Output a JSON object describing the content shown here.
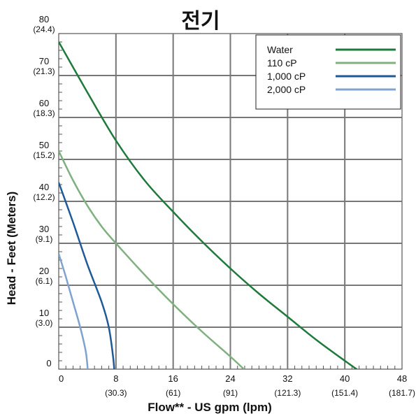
{
  "chart_data": {
    "type": "line",
    "title": "전기",
    "xlabel": "Flow** - US gpm (lpm)",
    "ylabel": "Head - Feet (Meters)",
    "xlim": [
      0,
      48
    ],
    "ylim": [
      0,
      80
    ],
    "grid": true,
    "legend_position": "top-right",
    "x_ticks": [
      {
        "value": 0,
        "label": "0",
        "sub": ""
      },
      {
        "value": 8,
        "label": "8",
        "sub": "(30.3)"
      },
      {
        "value": 16,
        "label": "16",
        "sub": "(61)"
      },
      {
        "value": 24,
        "label": "24",
        "sub": "(91)"
      },
      {
        "value": 32,
        "label": "32",
        "sub": "(121.3)"
      },
      {
        "value": 40,
        "label": "40",
        "sub": "(151.4)"
      },
      {
        "value": 48,
        "label": "48",
        "sub": "(181.7)"
      }
    ],
    "y_ticks": [
      {
        "value": 0,
        "label": "0",
        "sub": ""
      },
      {
        "value": 10,
        "label": "10",
        "sub": "(3.0)"
      },
      {
        "value": 20,
        "label": "20",
        "sub": "(6.1)"
      },
      {
        "value": 30,
        "label": "30",
        "sub": "(9.1)"
      },
      {
        "value": 40,
        "label": "40",
        "sub": "(12.2)"
      },
      {
        "value": 50,
        "label": "50",
        "sub": "(15.2)"
      },
      {
        "value": 60,
        "label": "60",
        "sub": "(18.3)"
      },
      {
        "value": 70,
        "label": "70",
        "sub": "(21.3)"
      },
      {
        "value": 80,
        "label": "80",
        "sub": "(24.4)"
      }
    ],
    "series": [
      {
        "name": "Water",
        "color": "#1e7a3a",
        "points": [
          [
            0,
            78
          ],
          [
            4,
            66
          ],
          [
            8,
            54.5
          ],
          [
            12,
            45
          ],
          [
            16,
            37.5
          ],
          [
            20,
            30.5
          ],
          [
            24,
            24
          ],
          [
            28,
            18
          ],
          [
            32,
            12.5
          ],
          [
            36,
            7
          ],
          [
            40,
            2
          ],
          [
            42.5,
            -1
          ]
        ]
      },
      {
        "name": "110 cP",
        "color": "#7fb07f",
        "points": [
          [
            0,
            52
          ],
          [
            2,
            45
          ],
          [
            4,
            39
          ],
          [
            6,
            34
          ],
          [
            8,
            30
          ],
          [
            12,
            22.5
          ],
          [
            16,
            15.5
          ],
          [
            20,
            9
          ],
          [
            24,
            3
          ],
          [
            26.5,
            -1
          ]
        ]
      },
      {
        "name": "1,000 cP",
        "color": "#1f5a96",
        "points": [
          [
            0,
            44.5
          ],
          [
            2,
            35
          ],
          [
            4,
            25
          ],
          [
            6,
            16
          ],
          [
            7,
            10
          ],
          [
            7.6,
            3
          ],
          [
            7.8,
            -1
          ]
        ]
      },
      {
        "name": "2,000 cP",
        "color": "#7fa2cf",
        "points": [
          [
            0,
            27.5
          ],
          [
            1,
            22
          ],
          [
            2,
            16
          ],
          [
            3,
            10
          ],
          [
            3.8,
            4
          ],
          [
            4.1,
            -1
          ]
        ]
      }
    ]
  }
}
